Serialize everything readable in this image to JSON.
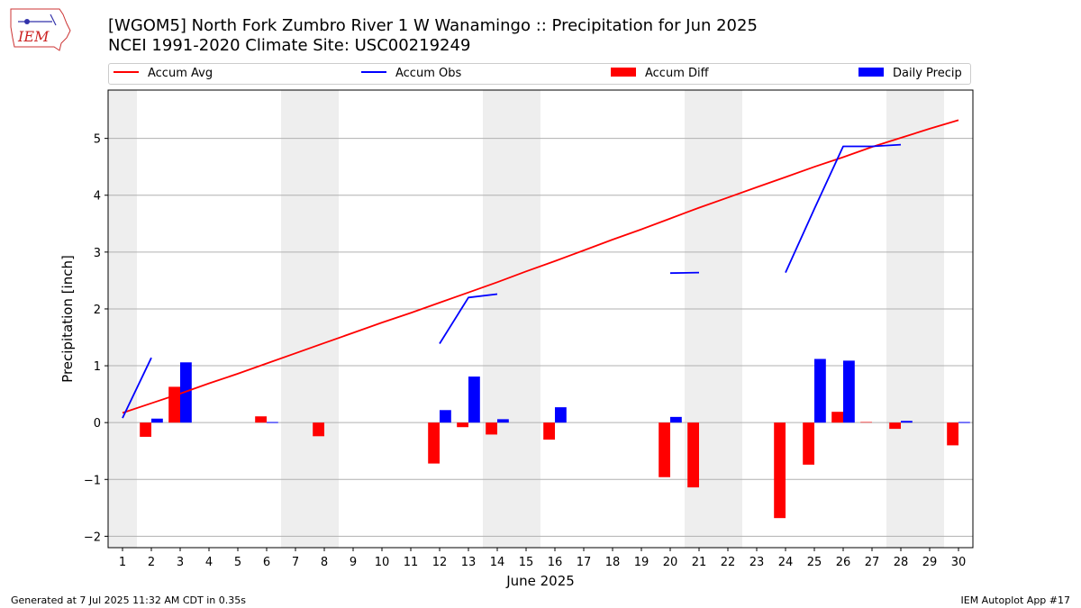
{
  "header": {
    "logo_text": "IEM",
    "title_line1": "[WGOM5] North Fork Zumbro River 1 W Wanamingo :: Precipitation for Jun 2025",
    "title_line2": "NCEI 1991-2020 Climate Site: USC00219249"
  },
  "legend": {
    "accum_avg": "Accum Avg",
    "accum_obs": "Accum Obs",
    "accum_diff": "Accum Diff",
    "daily_precip": "Daily Precip"
  },
  "footer": {
    "generated": "Generated at 7 Jul 2025 11:32 AM CDT in 0.35s",
    "app": "IEM Autoplot App #17"
  },
  "colors": {
    "avg": "#ff0000",
    "obs": "#0000ff",
    "diff": "#ff0000",
    "daily": "#0000ff",
    "weekend_shade": "#eeeeee",
    "grid": "#b0b0b0"
  },
  "chart_data": {
    "type": "bar",
    "xlabel": "June 2025",
    "ylabel": "Precipitation [inch]",
    "xlim": [
      0.5,
      30.5
    ],
    "ylim": [
      -2.2,
      5.85
    ],
    "yticks": [
      -2,
      -1,
      0,
      1,
      2,
      3,
      4,
      5
    ],
    "ytick_labels": [
      "−2",
      "−1",
      "0",
      "1",
      "2",
      "3",
      "4",
      "5"
    ],
    "days": [
      1,
      2,
      3,
      4,
      5,
      6,
      7,
      8,
      9,
      10,
      11,
      12,
      13,
      14,
      15,
      16,
      17,
      18,
      19,
      20,
      21,
      22,
      23,
      24,
      25,
      26,
      27,
      28,
      29,
      30
    ],
    "grid": "horizontal",
    "shaded_weekend_days": [
      [
        1,
        1
      ],
      [
        7,
        8
      ],
      [
        14,
        15
      ],
      [
        21,
        22
      ],
      [
        28,
        29
      ]
    ],
    "series": [
      {
        "name": "Accum Avg",
        "kind": "line",
        "values": [
          0.17,
          0.34,
          0.51,
          0.69,
          0.86,
          1.04,
          1.22,
          1.4,
          1.58,
          1.76,
          1.93,
          2.11,
          2.29,
          2.47,
          2.66,
          2.84,
          3.03,
          3.22,
          3.4,
          3.59,
          3.78,
          3.96,
          4.14,
          4.32,
          4.5,
          4.67,
          4.85,
          5.01,
          5.17,
          5.32
        ]
      },
      {
        "name": "Accum Obs",
        "kind": "line",
        "values": [
          0.08,
          1.14,
          null,
          null,
          null,
          null,
          null,
          null,
          null,
          null,
          null,
          1.39,
          2.2,
          2.26,
          null,
          null,
          null,
          null,
          null,
          2.63,
          2.64,
          null,
          null,
          2.64,
          3.76,
          4.86,
          4.86,
          4.89,
          null,
          null
        ]
      },
      {
        "name": "Accum Diff",
        "kind": "bar",
        "values": [
          0,
          -0.25,
          0.63,
          0,
          0,
          0.11,
          0,
          -0.24,
          0,
          0,
          0,
          -0.72,
          -0.08,
          -0.21,
          0,
          -0.3,
          0,
          0,
          0,
          -0.96,
          -1.14,
          0,
          0,
          -1.68,
          -0.74,
          0.19,
          0.01,
          -0.11,
          0,
          -0.4
        ]
      },
      {
        "name": "Daily Precip",
        "kind": "bar",
        "values": [
          0,
          0.07,
          1.06,
          0,
          0,
          0.01,
          0,
          0,
          0,
          0,
          0,
          0.22,
          0.81,
          0.06,
          0,
          0.27,
          0,
          0,
          0,
          0.1,
          0,
          0,
          0,
          0,
          1.12,
          1.09,
          0,
          0.03,
          0,
          0.01
        ]
      }
    ]
  }
}
